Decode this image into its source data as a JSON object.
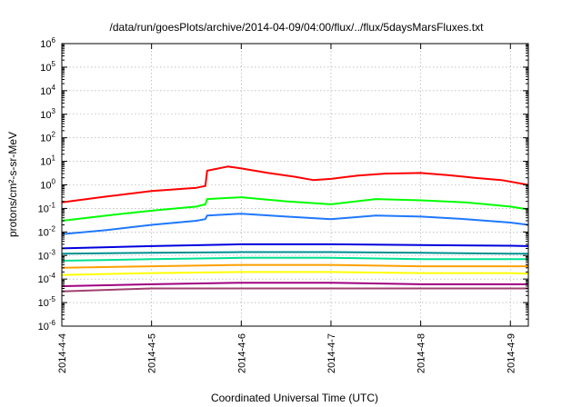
{
  "chart_data": {
    "type": "line",
    "title": "/data/run/goesPlots/archive/2014-04-09/04:00/flux/../flux/5daysMarsFluxes.txt",
    "xlabel": "Coordinated Universal Time (UTC)",
    "ylabel": "protons/cm²-s-sr-MeV",
    "y_scale": "log",
    "ylim_exponent": [
      -6,
      6
    ],
    "y_tick_base": "10",
    "y_tick_exponents": [
      "-6",
      "-5",
      "-4",
      "-3",
      "-2",
      "-1",
      "0",
      "1",
      "2",
      "3",
      "4",
      "5",
      "6"
    ],
    "xlim_days": [
      0,
      5.2
    ],
    "x_ticks": [
      {
        "label": "2014-4-4",
        "day": 0
      },
      {
        "label": "2014-4-5",
        "day": 1
      },
      {
        "label": "2014-4-6",
        "day": 2
      },
      {
        "label": "2014-4-7",
        "day": 3
      },
      {
        "label": "2014-4-8",
        "day": 4
      },
      {
        "label": "2014-4-9",
        "day": 5
      }
    ],
    "grid": true,
    "series": [
      {
        "color": "#ff0000",
        "x": [
          0,
          0.5,
          1.0,
          1.5,
          1.6,
          1.62,
          1.85,
          2.0,
          2.3,
          2.6,
          2.8,
          3.0,
          3.3,
          3.6,
          4.0,
          4.3,
          4.6,
          4.9,
          5.2
        ],
        "y": [
          0.18,
          0.32,
          0.55,
          0.75,
          0.9,
          4.0,
          6.0,
          5.0,
          3.2,
          2.2,
          1.6,
          1.8,
          2.5,
          3.0,
          3.2,
          2.6,
          2.0,
          1.6,
          1.0
        ]
      },
      {
        "color": "#00ff00",
        "x": [
          0,
          0.5,
          1.0,
          1.5,
          1.6,
          1.62,
          2.0,
          2.5,
          3.0,
          3.5,
          4.0,
          4.5,
          5.0,
          5.2
        ],
        "y": [
          0.03,
          0.05,
          0.08,
          0.12,
          0.15,
          0.25,
          0.3,
          0.2,
          0.15,
          0.25,
          0.22,
          0.18,
          0.12,
          0.09
        ]
      },
      {
        "color": "#1e78ff",
        "x": [
          0,
          0.5,
          1.0,
          1.5,
          1.6,
          1.62,
          2.0,
          2.5,
          3.0,
          3.5,
          4.0,
          4.5,
          5.0,
          5.2
        ],
        "y": [
          0.008,
          0.012,
          0.02,
          0.03,
          0.035,
          0.05,
          0.06,
          0.045,
          0.035,
          0.05,
          0.045,
          0.035,
          0.025,
          0.02
        ]
      },
      {
        "color": "#0000dd",
        "x": [
          0,
          1.0,
          2.0,
          3.0,
          4.0,
          5.0,
          5.2
        ],
        "y": [
          0.002,
          0.0025,
          0.003,
          0.003,
          0.0028,
          0.0026,
          0.0025
        ]
      },
      {
        "color": "#009090",
        "x": [
          0,
          1.0,
          2.0,
          3.0,
          4.0,
          5.0,
          5.2
        ],
        "y": [
          0.0012,
          0.0013,
          0.0014,
          0.0014,
          0.0013,
          0.0012,
          0.0012
        ]
      },
      {
        "color": "#00e090",
        "x": [
          0,
          1.0,
          2.0,
          3.0,
          4.0,
          5.0,
          5.2
        ],
        "y": [
          0.0006,
          0.0007,
          0.0008,
          0.0008,
          0.0007,
          0.0007,
          0.0007
        ]
      },
      {
        "color": "#ffa000",
        "x": [
          0,
          1.0,
          2.0,
          3.0,
          4.0,
          5.0,
          5.2
        ],
        "y": [
          0.0003,
          0.00035,
          0.0004,
          0.0004,
          0.00035,
          0.00035,
          0.00035
        ]
      },
      {
        "color": "#ffff00",
        "x": [
          0,
          1.0,
          2.0,
          3.0,
          4.0,
          5.0,
          5.2
        ],
        "y": [
          0.00015,
          0.00018,
          0.0002,
          0.0002,
          0.00018,
          0.00018,
          0.00017
        ]
      },
      {
        "color": "#a00080",
        "x": [
          0,
          1.0,
          2.0,
          3.0,
          4.0,
          5.0,
          5.2
        ],
        "y": [
          5e-05,
          6e-05,
          7e-05,
          7e-05,
          6e-05,
          6e-05,
          6e-05
        ]
      },
      {
        "color": "#a04070",
        "x": [
          0,
          1.0,
          2.0,
          3.0,
          4.0,
          5.0,
          5.2
        ],
        "y": [
          3e-05,
          4e-05,
          4e-05,
          4e-05,
          4e-05,
          4e-05,
          4e-05
        ]
      }
    ]
  }
}
